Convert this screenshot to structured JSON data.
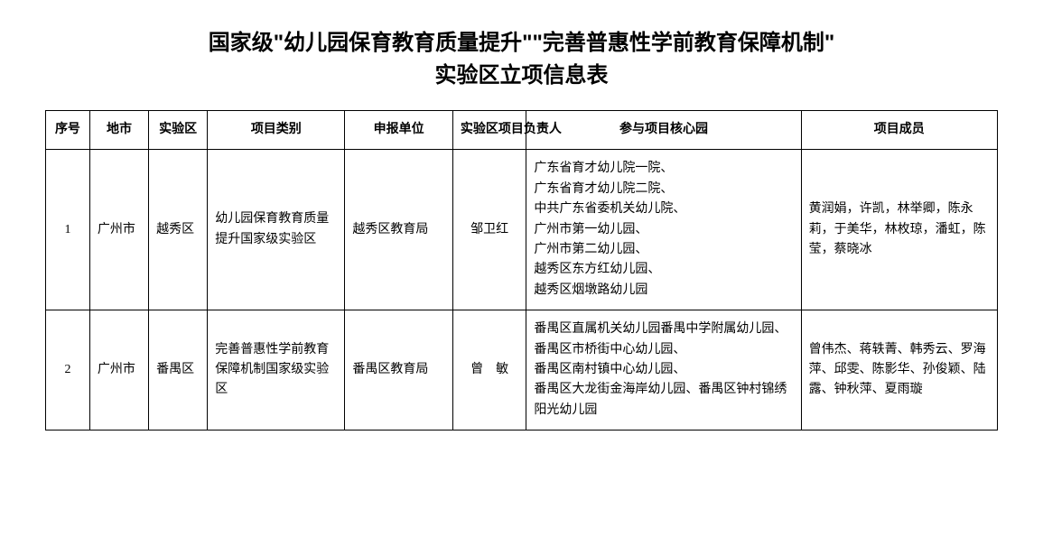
{
  "title_line1": "国家级\"幼儿园保育教育质量提升\"\"完善普惠性学前教育保障机制\"",
  "title_line2": "实验区立项信息表",
  "columns": {
    "seq": "序号",
    "city": "地市",
    "area": "实验区",
    "category": "项目类别",
    "unit": "申报单位",
    "leader": "实验区项目负责人",
    "core": "参与项目核心园",
    "members": "项目成员"
  },
  "rows": [
    {
      "seq": "1",
      "city": "广州市",
      "area": "越秀区",
      "category": "幼儿园保育教育质量提升国家级实验区",
      "unit": "越秀区教育局",
      "leader": "邹卫红",
      "core": "广东省育才幼儿院一院、\n广东省育才幼儿院二院、\n中共广东省委机关幼儿院、\n广州市第一幼儿园、\n广州市第二幼儿园、\n越秀区东方红幼儿园、\n越秀区烟墩路幼儿园",
      "members": "黄润娟，许凯，林举卿，陈永莉，于美华，林枚琼，潘虹，陈莹，蔡晓冰"
    },
    {
      "seq": "2",
      "city": "广州市",
      "area": "番禺区",
      "category": "完善普惠性学前教育保障机制国家级实验区",
      "unit": "番禺区教育局",
      "leader": "曾敏",
      "leader_spaced": true,
      "core": "番禺区直属机关幼儿园番禺中学附属幼儿园、\n番禺区市桥街中心幼儿园、\n番禺区南村镇中心幼儿园、\n番禺区大龙街金海岸幼儿园、番禺区钟村锦绣阳光幼儿园",
      "members": "曾伟杰、蒋轶菁、韩秀云、罗海萍、邱雯、陈影华、孙俊颖、陆露、钟秋萍、夏雨璇"
    }
  ],
  "style": {
    "background": "#ffffff",
    "border_color": "#000000",
    "title_fontsize": 24,
    "cell_fontsize": 14
  }
}
